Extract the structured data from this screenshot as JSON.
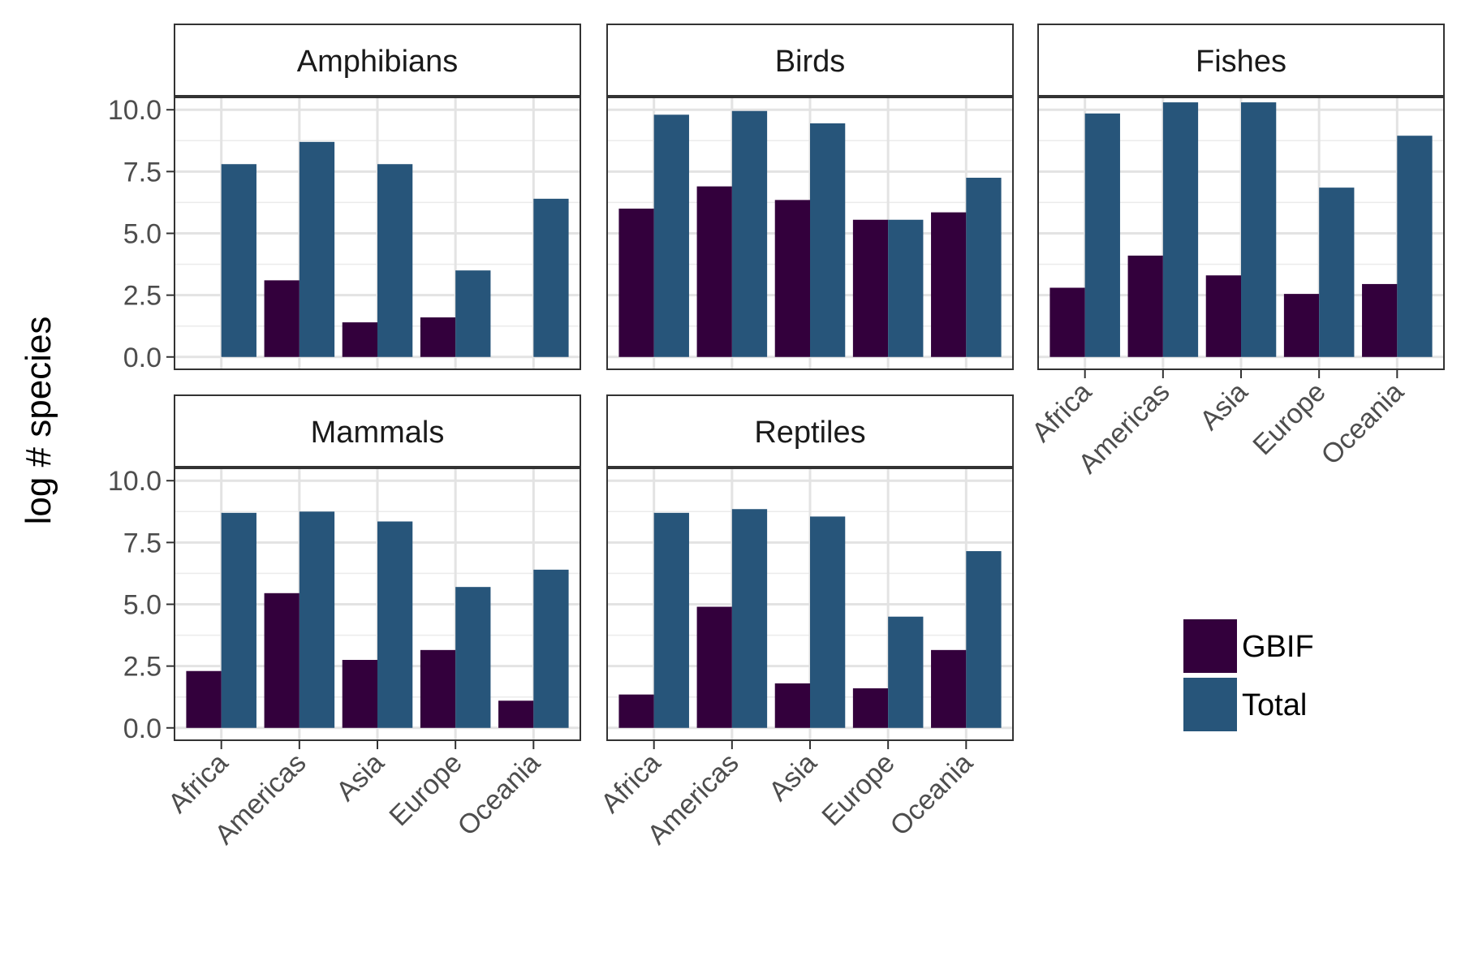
{
  "chart_data": {
    "type": "bar",
    "ylabel": "log # species",
    "xlabel": "",
    "ylim": [
      -0.5,
      10.5
    ],
    "yticks": [
      "0.0",
      "2.5",
      "5.0",
      "7.5",
      "10.0"
    ],
    "ytick_values": [
      0,
      2.5,
      5,
      7.5,
      10
    ],
    "categories": [
      "Africa",
      "Americas",
      "Asia",
      "Europe",
      "Oceania"
    ],
    "legend": {
      "placement": "bottom-right",
      "entries": [
        "GBIF",
        "Total"
      ]
    },
    "colors": {
      "GBIF": "#33003c",
      "Total": "#27557a"
    },
    "grid": true,
    "panels": [
      {
        "title": "Amphibians",
        "series": [
          {
            "name": "GBIF",
            "values": [
              0,
              3.1,
              1.4,
              1.6,
              0
            ]
          },
          {
            "name": "Total",
            "values": [
              7.8,
              8.7,
              7.8,
              3.5,
              6.4
            ]
          }
        ]
      },
      {
        "title": "Birds",
        "series": [
          {
            "name": "GBIF",
            "values": [
              6.0,
              6.9,
              6.35,
              5.55,
              5.85
            ]
          },
          {
            "name": "Total",
            "values": [
              9.8,
              9.95,
              9.45,
              5.55,
              7.25
            ]
          }
        ]
      },
      {
        "title": "Fishes",
        "series": [
          {
            "name": "GBIF",
            "values": [
              2.8,
              4.1,
              3.3,
              2.55,
              2.95
            ]
          },
          {
            "name": "Total",
            "values": [
              9.85,
              10.3,
              10.3,
              6.85,
              8.95
            ]
          }
        ]
      },
      {
        "title": "Mammals",
        "series": [
          {
            "name": "GBIF",
            "values": [
              2.3,
              5.45,
              2.75,
              3.15,
              1.1
            ]
          },
          {
            "name": "Total",
            "values": [
              8.7,
              8.75,
              8.35,
              5.7,
              6.4
            ]
          }
        ]
      },
      {
        "title": "Reptiles",
        "series": [
          {
            "name": "GBIF",
            "values": [
              1.35,
              4.9,
              1.8,
              1.6,
              3.15
            ]
          },
          {
            "name": "Total",
            "values": [
              8.7,
              8.85,
              8.55,
              4.5,
              7.15
            ]
          }
        ]
      }
    ]
  }
}
